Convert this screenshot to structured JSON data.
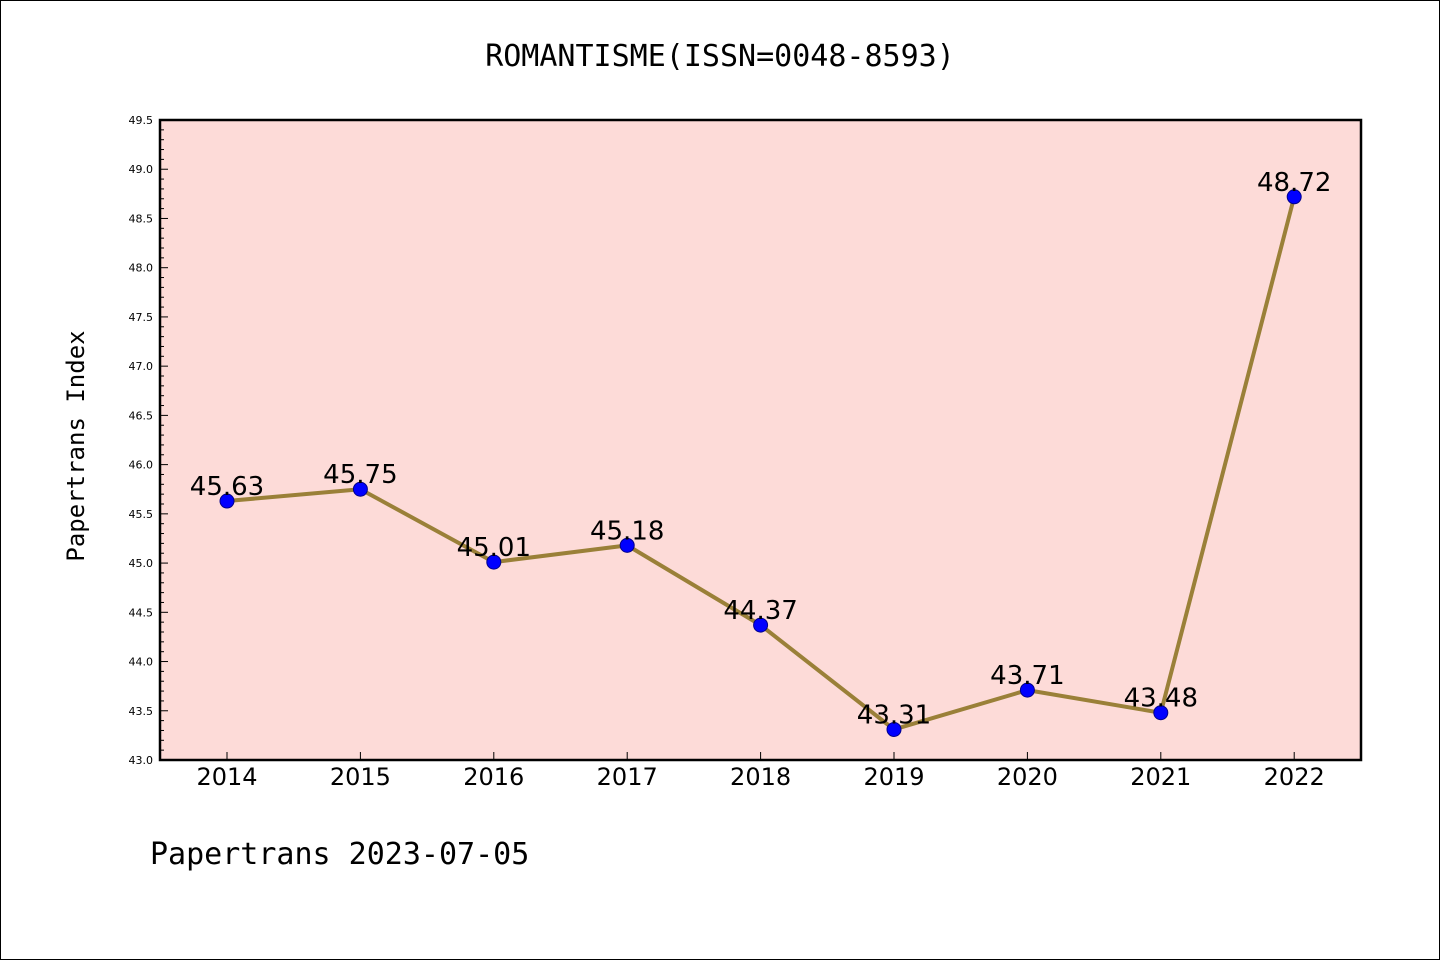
{
  "title": "ROMANTISME(ISSN=0048-8593)",
  "footer": "Papertrans 2023-07-05",
  "colors": {
    "plot_background": "#fddbd8",
    "line": "#9a8038",
    "marker": "#0000ff",
    "marker_edge": "#00008b"
  },
  "chart_data": {
    "type": "line",
    "title": "ROMANTISME(ISSN=0048-8593)",
    "xlabel": "",
    "ylabel": "Papertrans Index",
    "categories": [
      "2014",
      "2015",
      "2016",
      "2017",
      "2018",
      "2019",
      "2020",
      "2021",
      "2022"
    ],
    "values": [
      45.63,
      45.75,
      45.01,
      45.18,
      44.37,
      43.31,
      43.71,
      43.48,
      48.72
    ],
    "data_labels": [
      "45.63",
      "45.75",
      "45.01",
      "45.18",
      "44.37",
      "43.31",
      "43.71",
      "43.48",
      "48.72"
    ],
    "ylim": [
      43.0,
      49.5
    ],
    "yticks": [
      "43.0",
      "43.5",
      "44.0",
      "44.5",
      "45.0",
      "45.5",
      "46.0",
      "46.5",
      "47.0",
      "47.5",
      "48.0",
      "48.5",
      "49.0",
      "49.5"
    ],
    "grid": false,
    "legend": "none"
  }
}
